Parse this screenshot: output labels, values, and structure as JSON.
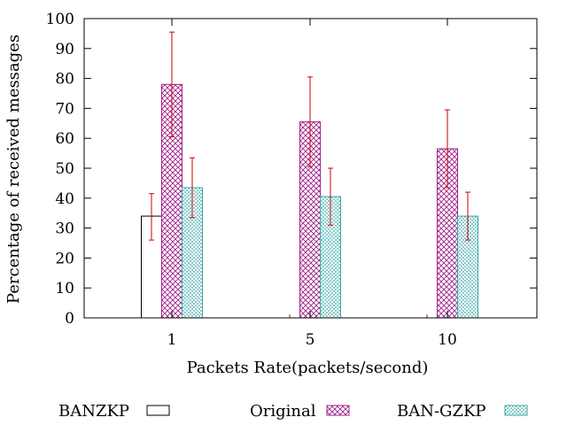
{
  "chart_data": {
    "type": "bar",
    "xlabel": "Packets Rate(packets/second)",
    "ylabel": "Percentage of received messages",
    "categories": [
      "1",
      "5",
      "10"
    ],
    "ylim": [
      0,
      100
    ],
    "yticks": [
      0,
      10,
      20,
      30,
      40,
      50,
      60,
      70,
      80,
      90,
      100
    ],
    "grid": false,
    "legend_position": "bottom",
    "series": [
      {
        "name": "BANZKP",
        "values": [
          34,
          0,
          0
        ],
        "error_low": [
          26,
          0,
          0
        ],
        "error_high": [
          41.5,
          0,
          0
        ],
        "fill": "none",
        "pattern": "blank",
        "color": "#000000"
      },
      {
        "name": "Original",
        "values": [
          78,
          65.5,
          56.5
        ],
        "error_low": [
          60.5,
          50.5,
          43.5
        ],
        "error_high": [
          95.5,
          80.5,
          69.5
        ],
        "fill": "crosshatch",
        "pattern": "crosshatch",
        "color": "#a0208a"
      },
      {
        "name": "BAN-GZKP",
        "values": [
          43.5,
          40.5,
          34
        ],
        "error_low": [
          33.5,
          31,
          26
        ],
        "error_high": [
          53.5,
          50,
          42
        ],
        "fill": "dotted",
        "pattern": "dots",
        "color": "#3aa8a8"
      }
    ],
    "error_bar_color": "#cc0000"
  }
}
